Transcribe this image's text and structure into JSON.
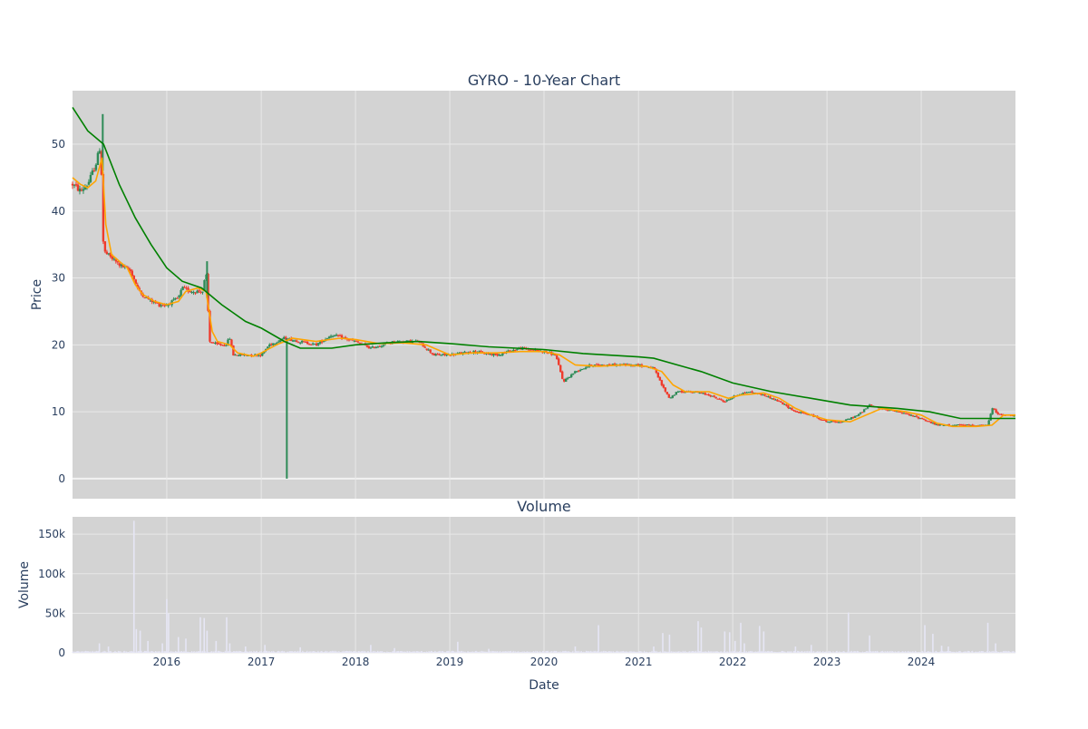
{
  "chart_data": [
    {
      "type": "candlestick",
      "title": "GYRO - 10-Year Chart",
      "ylabel": "Price",
      "xlabel": "",
      "xlim": [
        "2015-01-01",
        "2024-12-31"
      ],
      "ylim": [
        -3,
        58
      ],
      "y_ticks": [
        0,
        10,
        20,
        30,
        40,
        50
      ],
      "x_ticks": [
        "2016-01-01",
        "2017-01-01",
        "2018-01-01",
        "2019-01-01",
        "2020-01-01",
        "2021-01-01",
        "2022-01-01",
        "2023-01-01",
        "2024-01-01"
      ],
      "x_tick_labels": [
        "2016",
        "2017",
        "2018",
        "2019",
        "2020",
        "2021",
        "2022",
        "2023",
        "2024"
      ],
      "grid": true,
      "colors": {
        "up": "#2e8b57",
        "down": "#ef3b2c",
        "ma_short": "#ffa500",
        "ma_long": "#008000",
        "plot_bg": "#d3d3d3",
        "grid": "#e8e8e8"
      },
      "price_path": [
        [
          "2015-01-01",
          44
        ],
        [
          "2015-02-01",
          43
        ],
        [
          "2015-03-01",
          44
        ],
        [
          "2015-04-01",
          47
        ],
        [
          "2015-04-20",
          50
        ],
        [
          "2015-05-01",
          34
        ],
        [
          "2015-06-01",
          33
        ],
        [
          "2015-07-01",
          32
        ],
        [
          "2015-08-15",
          31
        ],
        [
          "2015-09-15",
          28
        ],
        [
          "2015-10-15",
          27
        ],
        [
          "2015-12-01",
          26
        ],
        [
          "2016-01-01",
          26
        ],
        [
          "2016-02-15",
          27
        ],
        [
          "2016-03-01",
          28.5
        ],
        [
          "2016-04-01",
          28
        ],
        [
          "2016-05-20",
          28
        ],
        [
          "2016-06-01",
          31
        ],
        [
          "2016-06-15",
          20.5
        ],
        [
          "2016-07-15",
          20
        ],
        [
          "2016-08-15",
          20
        ],
        [
          "2016-09-01",
          21
        ],
        [
          "2016-09-15",
          18.5
        ],
        [
          "2016-11-01",
          18.5
        ],
        [
          "2017-01-01",
          18.5
        ],
        [
          "2017-02-01",
          20
        ],
        [
          "2017-04-01",
          21
        ],
        [
          "2017-06-01",
          20.5
        ],
        [
          "2017-08-01",
          20
        ],
        [
          "2017-10-01",
          21.5
        ],
        [
          "2018-01-01",
          20.5
        ],
        [
          "2018-03-01",
          19.5
        ],
        [
          "2018-06-01",
          20.5
        ],
        [
          "2018-09-01",
          20.5
        ],
        [
          "2018-11-01",
          18.5
        ],
        [
          "2019-01-01",
          18.5
        ],
        [
          "2019-04-01",
          19
        ],
        [
          "2019-07-01",
          18.5
        ],
        [
          "2019-10-01",
          19.5
        ],
        [
          "2020-01-01",
          19
        ],
        [
          "2020-02-15",
          18.5
        ],
        [
          "2020-03-15",
          14.5
        ],
        [
          "2020-05-01",
          16
        ],
        [
          "2020-07-01",
          17
        ],
        [
          "2020-10-01",
          17
        ],
        [
          "2021-01-01",
          17
        ],
        [
          "2021-03-01",
          16.5
        ],
        [
          "2021-04-01",
          14
        ],
        [
          "2021-05-01",
          12
        ],
        [
          "2021-06-01",
          13
        ],
        [
          "2021-08-01",
          13
        ],
        [
          "2021-10-01",
          12.5
        ],
        [
          "2021-12-01",
          11.5
        ],
        [
          "2022-01-15",
          12.5
        ],
        [
          "2022-03-01",
          13
        ],
        [
          "2022-05-01",
          12.5
        ],
        [
          "2022-07-01",
          11.5
        ],
        [
          "2022-09-01",
          10
        ],
        [
          "2022-11-01",
          9.5
        ],
        [
          "2023-01-01",
          8.5
        ],
        [
          "2023-03-01",
          8.5
        ],
        [
          "2023-05-01",
          9.5
        ],
        [
          "2023-06-15",
          11
        ],
        [
          "2023-08-01",
          10.5
        ],
        [
          "2023-10-01",
          10
        ],
        [
          "2024-01-01",
          9
        ],
        [
          "2024-03-01",
          8
        ],
        [
          "2024-05-01",
          8
        ],
        [
          "2024-07-01",
          8
        ],
        [
          "2024-09-15",
          8
        ],
        [
          "2024-10-01",
          10.5
        ],
        [
          "2024-11-01",
          9.5
        ],
        [
          "2024-12-31",
          9.5
        ]
      ],
      "series": [
        {
          "values": [
            [
              "2015-01-01",
              45
            ],
            [
              "2015-02-01",
              44
            ],
            [
              "2015-03-01",
              43.5
            ],
            [
              "2015-04-01",
              44.5
            ],
            [
              "2015-04-25",
              48
            ],
            [
              "2015-05-10",
              38
            ],
            [
              "2015-06-01",
              33.5
            ],
            [
              "2015-07-01",
              32.5
            ],
            [
              "2015-08-01",
              31.5
            ],
            [
              "2015-09-01",
              29
            ],
            [
              "2015-10-01",
              27.5
            ],
            [
              "2015-11-15",
              26.5
            ],
            [
              "2016-01-01",
              26
            ],
            [
              "2016-02-15",
              26.5
            ],
            [
              "2016-03-15",
              28
            ],
            [
              "2016-05-01",
              28.5
            ],
            [
              "2016-06-01",
              28
            ],
            [
              "2016-06-25",
              22
            ],
            [
              "2016-07-15",
              20.5
            ],
            [
              "2016-09-01",
              20
            ],
            [
              "2016-10-01",
              18.8
            ],
            [
              "2016-12-01",
              18.3
            ],
            [
              "2017-01-01",
              18.8
            ],
            [
              "2017-03-01",
              20
            ],
            [
              "2017-05-01",
              21
            ],
            [
              "2017-08-01",
              20.5
            ],
            [
              "2017-11-01",
              21
            ],
            [
              "2018-01-01",
              20.8
            ],
            [
              "2018-04-01",
              20.2
            ],
            [
              "2018-07-01",
              20.3
            ],
            [
              "2018-10-01",
              20
            ],
            [
              "2019-01-01",
              18.5
            ],
            [
              "2019-04-01",
              18.8
            ],
            [
              "2019-07-01",
              18.8
            ],
            [
              "2019-10-01",
              19
            ],
            [
              "2020-01-01",
              19
            ],
            [
              "2020-03-01",
              18.5
            ],
            [
              "2020-05-01",
              17
            ],
            [
              "2020-08-01",
              16.8
            ],
            [
              "2020-11-01",
              17
            ],
            [
              "2021-02-01",
              16.8
            ],
            [
              "2021-04-01",
              16
            ],
            [
              "2021-05-15",
              14
            ],
            [
              "2021-07-01",
              13
            ],
            [
              "2021-10-01",
              13
            ],
            [
              "2021-12-15",
              12
            ],
            [
              "2022-02-01",
              12.5
            ],
            [
              "2022-05-01",
              12.8
            ],
            [
              "2022-07-01",
              12
            ],
            [
              "2022-09-01",
              10.5
            ],
            [
              "2022-11-01",
              9.5
            ],
            [
              "2023-01-01",
              8.8
            ],
            [
              "2023-04-01",
              8.5
            ],
            [
              "2023-06-01",
              9.5
            ],
            [
              "2023-08-01",
              10.5
            ],
            [
              "2023-11-01",
              10
            ],
            [
              "2024-01-01",
              9.5
            ],
            [
              "2024-03-01",
              8.3
            ],
            [
              "2024-05-01",
              7.8
            ],
            [
              "2024-08-01",
              7.8
            ],
            [
              "2024-10-01",
              8
            ],
            [
              "2024-11-15",
              9.5
            ],
            [
              "2024-12-31",
              9.5
            ]
          ]
        },
        {
          "values": [
            [
              "2015-01-01",
              55.5
            ],
            [
              "2015-03-01",
              52
            ],
            [
              "2015-05-01",
              50
            ],
            [
              "2015-07-01",
              44
            ],
            [
              "2015-09-01",
              39
            ],
            [
              "2015-11-01",
              35
            ],
            [
              "2016-01-01",
              31.5
            ],
            [
              "2016-03-01",
              29.5
            ],
            [
              "2016-05-15",
              28.5
            ],
            [
              "2016-08-01",
              26
            ],
            [
              "2016-11-01",
              23.5
            ],
            [
              "2017-01-01",
              22.5
            ],
            [
              "2017-04-01",
              20.5
            ],
            [
              "2017-06-01",
              19.5
            ],
            [
              "2017-10-01",
              19.5
            ],
            [
              "2018-01-01",
              20
            ],
            [
              "2018-05-01",
              20.3
            ],
            [
              "2018-09-01",
              20.5
            ],
            [
              "2019-01-01",
              20.2
            ],
            [
              "2019-06-01",
              19.7
            ],
            [
              "2020-01-01",
              19.3
            ],
            [
              "2020-06-01",
              18.7
            ],
            [
              "2021-01-01",
              18.2
            ],
            [
              "2021-03-01",
              18
            ],
            [
              "2021-06-01",
              17
            ],
            [
              "2021-09-01",
              16
            ],
            [
              "2022-01-01",
              14.3
            ],
            [
              "2022-06-01",
              13
            ],
            [
              "2022-11-01",
              12
            ],
            [
              "2023-04-01",
              11
            ],
            [
              "2023-10-01",
              10.5
            ],
            [
              "2024-02-01",
              10
            ],
            [
              "2024-06-01",
              9
            ],
            [
              "2024-12-31",
              9
            ]
          ]
        }
      ],
      "spikes": [
        {
          "date": "2017-04-10",
          "low": 0,
          "high": 21
        },
        {
          "date": "2015-04-28",
          "low": 46,
          "high": 54.5
        },
        {
          "date": "2016-06-05",
          "low": 27,
          "high": 32.5
        }
      ]
    },
    {
      "type": "bar",
      "title": "Volume",
      "xlabel": "Date",
      "ylabel": "Volume",
      "ylim": [
        0,
        172000
      ],
      "y_ticks": [
        0,
        50000,
        100000,
        150000
      ],
      "y_tick_labels": [
        "0",
        "50k",
        "100k",
        "150k"
      ],
      "x_tick_labels": [
        "2016",
        "2017",
        "2018",
        "2019",
        "2020",
        "2021",
        "2022",
        "2023",
        "2024"
      ],
      "bar_color": "#e6e6f5",
      "baseline_volume": 1500,
      "notable_bars": [
        [
          "2015-04-15",
          12000
        ],
        [
          "2015-05-20",
          8000
        ],
        [
          "2015-08-27",
          167000
        ],
        [
          "2015-09-05",
          30000
        ],
        [
          "2015-09-20",
          28000
        ],
        [
          "2015-10-20",
          15000
        ],
        [
          "2015-12-15",
          12000
        ],
        [
          "2016-01-01",
          68000
        ],
        [
          "2016-01-08",
          50000
        ],
        [
          "2016-02-15",
          20000
        ],
        [
          "2016-03-15",
          18000
        ],
        [
          "2016-05-10",
          45000
        ],
        [
          "2016-05-25",
          44000
        ],
        [
          "2016-06-05",
          28000
        ],
        [
          "2016-07-10",
          15000
        ],
        [
          "2016-08-20",
          45000
        ],
        [
          "2016-09-01",
          12000
        ],
        [
          "2016-11-01",
          8000
        ],
        [
          "2017-01-15",
          10000
        ],
        [
          "2017-06-01",
          7000
        ],
        [
          "2018-03-01",
          10000
        ],
        [
          "2018-06-01",
          6000
        ],
        [
          "2019-02-01",
          14000
        ],
        [
          "2019-06-01",
          5000
        ],
        [
          "2020-05-01",
          8000
        ],
        [
          "2020-07-30",
          35000
        ],
        [
          "2021-03-01",
          8000
        ],
        [
          "2021-04-05",
          25000
        ],
        [
          "2021-05-01",
          23000
        ],
        [
          "2021-08-20",
          40000
        ],
        [
          "2021-09-01",
          32000
        ],
        [
          "2021-12-01",
          27000
        ],
        [
          "2021-12-20",
          26000
        ],
        [
          "2022-01-10",
          15000
        ],
        [
          "2022-02-01",
          38000
        ],
        [
          "2022-02-15",
          12000
        ],
        [
          "2022-04-15",
          34000
        ],
        [
          "2022-05-01",
          27000
        ],
        [
          "2022-09-01",
          8000
        ],
        [
          "2022-11-01",
          10000
        ],
        [
          "2023-03-25",
          51000
        ],
        [
          "2023-06-15",
          22000
        ],
        [
          "2024-01-15",
          35000
        ],
        [
          "2024-02-15",
          24000
        ],
        [
          "2024-03-20",
          9000
        ],
        [
          "2024-04-15",
          8000
        ],
        [
          "2024-09-15",
          38000
        ],
        [
          "2024-10-15",
          12000
        ]
      ]
    }
  ]
}
